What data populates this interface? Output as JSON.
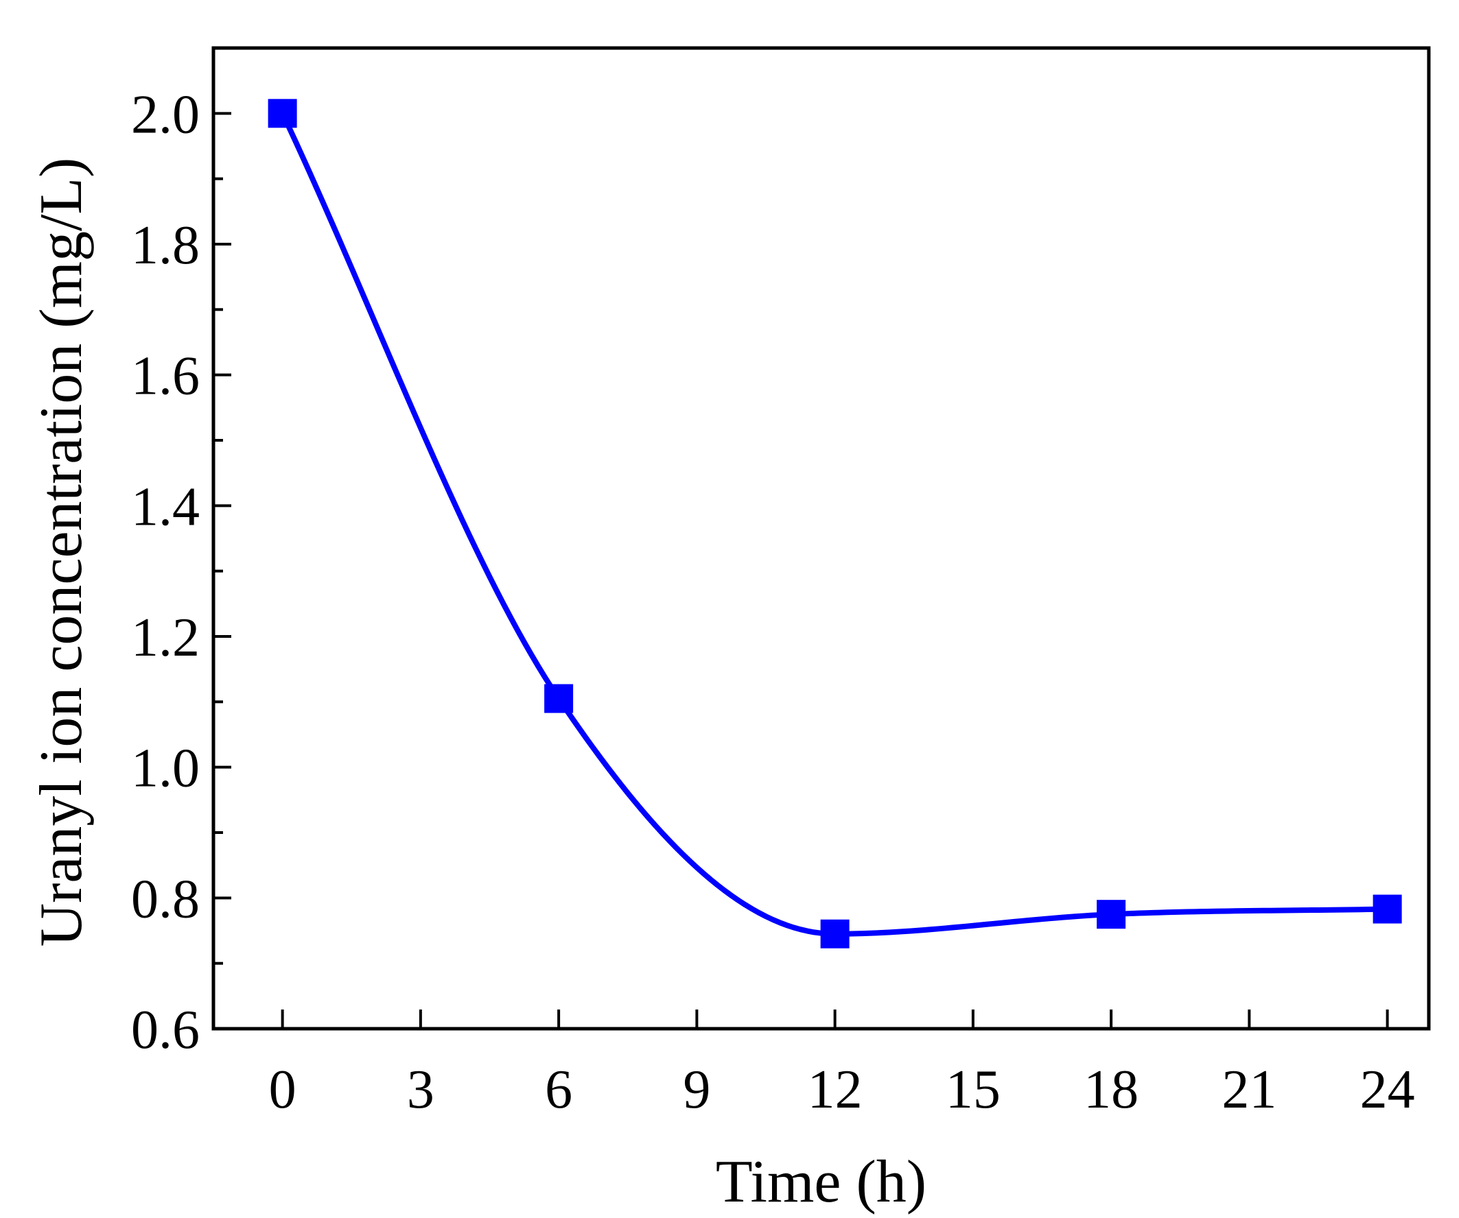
{
  "chart_data": {
    "type": "line",
    "title": "",
    "xlabel": "Time (h)",
    "ylabel": "Uranyl ion concentration (mg/L)",
    "xlim": [
      -1.5,
      24.9
    ],
    "ylim": [
      0.6,
      2.1
    ],
    "x_ticks": [
      0,
      3,
      6,
      9,
      12,
      15,
      18,
      21,
      24
    ],
    "x_tick_labels": [
      "0",
      "3",
      "6",
      "9",
      "12",
      "15",
      "18",
      "21",
      "24"
    ],
    "y_ticks": [
      0.6,
      0.8,
      1.0,
      1.2,
      1.4,
      1.6,
      1.8,
      2.0
    ],
    "y_tick_labels": [
      "0.6",
      "0.8",
      "1.0",
      "1.2",
      "1.4",
      "1.6",
      "1.8",
      "2.0"
    ],
    "y_minor_ticks": [
      0.7,
      0.9,
      1.1,
      1.3,
      1.5,
      1.7,
      1.9
    ],
    "grid": false,
    "marker": "square",
    "line_style": "smooth",
    "series": [
      {
        "x": [
          0,
          6,
          12,
          18,
          24
        ],
        "values": [
          2.0,
          1.105,
          0.745,
          0.775,
          0.783
        ],
        "color": "#0000ff"
      }
    ]
  }
}
